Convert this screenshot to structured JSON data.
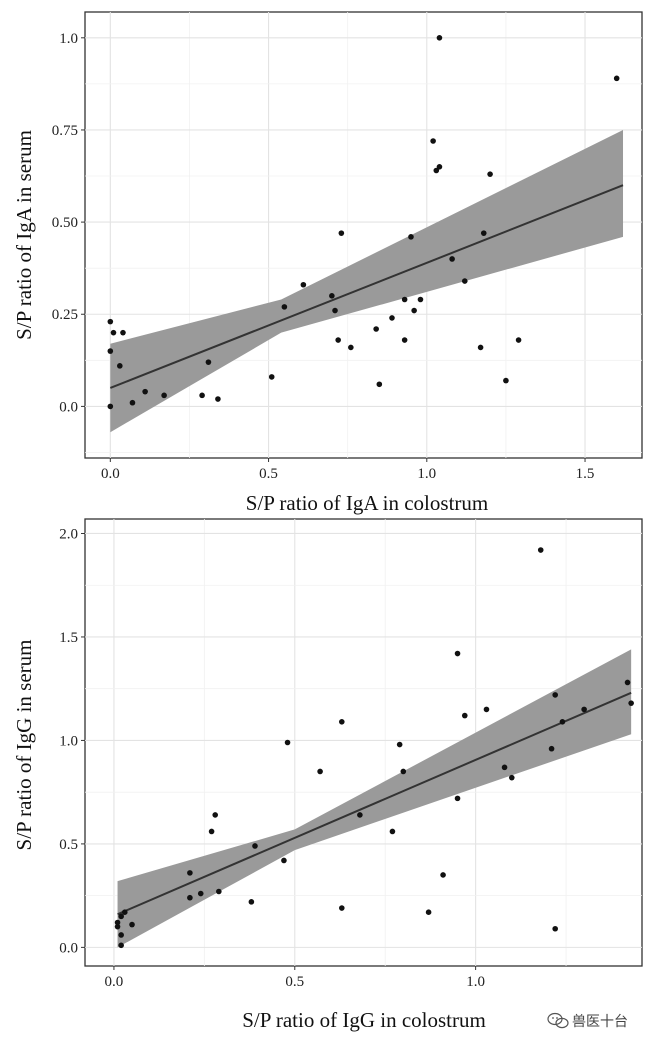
{
  "chart_data": [
    {
      "type": "scatter",
      "xlabel": "S/P ratio of IgA in colostrum",
      "ylabel": "S/P ratio of IgA in serum",
      "xlim": [
        -0.08,
        1.68
      ],
      "ylim": [
        -0.14,
        1.07
      ],
      "xticks": [
        "0.0",
        "0.5",
        "1.0",
        "1.5"
      ],
      "yticks": [
        "0.0",
        "0.25",
        "0.50",
        "0.75",
        "1.0"
      ],
      "xtick_values": [
        0,
        0.5,
        1.0,
        1.5
      ],
      "ytick_values": [
        0,
        0.25,
        0.5,
        0.75,
        1.0
      ],
      "grid": true,
      "trend_line": {
        "x": [
          0,
          1.62
        ],
        "y": [
          0.05,
          0.6
        ]
      },
      "confidence_band": {
        "x": [
          0,
          0.54,
          1.62
        ],
        "upper": [
          0.17,
          0.29,
          0.75
        ],
        "lower": [
          -0.07,
          0.2,
          0.46
        ]
      },
      "series": [
        {
          "points": [
            [
              0.0,
              0.0
            ],
            [
              0.0,
              0.15
            ],
            [
              0.0,
              0.23
            ],
            [
              0.01,
              0.2
            ],
            [
              0.03,
              0.11
            ],
            [
              0.04,
              0.2
            ],
            [
              0.07,
              0.01
            ],
            [
              0.11,
              0.04
            ],
            [
              0.17,
              0.03
            ],
            [
              0.29,
              0.03
            ],
            [
              0.31,
              0.12
            ],
            [
              0.34,
              0.02
            ],
            [
              0.51,
              0.08
            ],
            [
              0.55,
              0.27
            ],
            [
              0.61,
              0.33
            ],
            [
              0.7,
              0.3
            ],
            [
              0.71,
              0.26
            ],
            [
              0.72,
              0.18
            ],
            [
              0.73,
              0.47
            ],
            [
              0.76,
              0.16
            ],
            [
              0.84,
              0.21
            ],
            [
              0.85,
              0.06
            ],
            [
              0.89,
              0.24
            ],
            [
              0.93,
              0.29
            ],
            [
              0.93,
              0.18
            ],
            [
              0.95,
              0.46
            ],
            [
              0.96,
              0.26
            ],
            [
              0.98,
              0.29
            ],
            [
              1.02,
              0.72
            ],
            [
              1.03,
              0.64
            ],
            [
              1.04,
              0.65
            ],
            [
              1.04,
              1.0
            ],
            [
              1.08,
              0.4
            ],
            [
              1.12,
              0.34
            ],
            [
              1.17,
              0.16
            ],
            [
              1.18,
              0.47
            ],
            [
              1.2,
              0.63
            ],
            [
              1.25,
              0.07
            ],
            [
              1.29,
              0.18
            ],
            [
              1.6,
              0.89
            ]
          ]
        }
      ]
    },
    {
      "type": "scatter",
      "xlabel": "S/P ratio of IgG in colostrum",
      "ylabel": "S/P ratio of IgG in serum",
      "xlim": [
        -0.08,
        1.46
      ],
      "ylim": [
        -0.09,
        2.07
      ],
      "xticks": [
        "0.0",
        "0.5",
        "1.0"
      ],
      "yticks": [
        "0.0",
        "0.5",
        "1.0",
        "1.5",
        "2.0"
      ],
      "xtick_values": [
        0,
        0.5,
        1.0
      ],
      "ytick_values": [
        0,
        0.5,
        1.0,
        1.5,
        2.0
      ],
      "grid": true,
      "trend_line": {
        "x": [
          0.01,
          1.43
        ],
        "y": [
          0.16,
          1.23
        ]
      },
      "confidence_band": {
        "x": [
          0.01,
          0.5,
          1.43
        ],
        "upper": [
          0.32,
          0.57,
          1.44
        ],
        "lower": [
          0.0,
          0.47,
          1.03
        ]
      },
      "series": [
        {
          "points": [
            [
              0.01,
              0.1
            ],
            [
              0.01,
              0.12
            ],
            [
              0.02,
              0.06
            ],
            [
              0.02,
              0.01
            ],
            [
              0.02,
              0.15
            ],
            [
              0.03,
              0.17
            ],
            [
              0.05,
              0.11
            ],
            [
              0.21,
              0.36
            ],
            [
              0.21,
              0.24
            ],
            [
              0.24,
              0.26
            ],
            [
              0.27,
              0.56
            ],
            [
              0.28,
              0.64
            ],
            [
              0.29,
              0.27
            ],
            [
              0.38,
              0.22
            ],
            [
              0.39,
              0.49
            ],
            [
              0.47,
              0.42
            ],
            [
              0.48,
              0.99
            ],
            [
              0.57,
              0.85
            ],
            [
              0.63,
              1.09
            ],
            [
              0.63,
              0.19
            ],
            [
              0.68,
              0.64
            ],
            [
              0.77,
              0.56
            ],
            [
              0.79,
              0.98
            ],
            [
              0.8,
              0.85
            ],
            [
              0.87,
              0.17
            ],
            [
              0.91,
              0.35
            ],
            [
              0.95,
              1.42
            ],
            [
              0.95,
              0.72
            ],
            [
              0.97,
              1.12
            ],
            [
              1.03,
              1.15
            ],
            [
              1.08,
              0.87
            ],
            [
              1.1,
              0.82
            ],
            [
              1.18,
              1.92
            ],
            [
              1.21,
              0.96
            ],
            [
              1.22,
              0.09
            ],
            [
              1.22,
              1.22
            ],
            [
              1.24,
              1.09
            ],
            [
              1.3,
              1.15
            ],
            [
              1.42,
              1.28
            ],
            [
              1.43,
              1.18
            ]
          ]
        }
      ]
    }
  ],
  "watermark": {
    "text": "兽医十台",
    "icon": "wechat-icon"
  }
}
